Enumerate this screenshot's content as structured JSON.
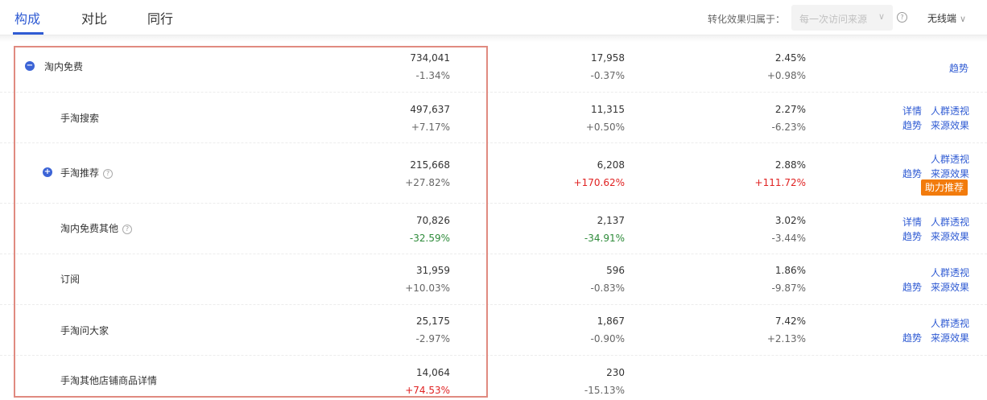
{
  "tabs": [
    {
      "label": "构成",
      "active": true
    },
    {
      "label": "对比",
      "active": false
    },
    {
      "label": "同行",
      "active": false
    }
  ],
  "filters": {
    "attribution_label": "转化效果归属于：",
    "attribution_value": "每一次访问来源",
    "help_icon": "question-circle-icon",
    "device_label": "无线端"
  },
  "colors": {
    "accent": "#2f5bd3",
    "positive": "#e02222",
    "negative": "#2e8b3a",
    "badge": "#f27b0c",
    "highlight": "#e08a80"
  },
  "rows": [
    {
      "name": "淘内免费",
      "toggle": "−",
      "visitors": "734,041",
      "visitors_change": "-1.34%",
      "buyers": "17,958",
      "buyers_change": "-0.37%",
      "rate": "2.45%",
      "rate_change": "+0.98%",
      "links": [
        "趋势"
      ]
    },
    {
      "name": "手淘搜索",
      "visitors": "497,637",
      "visitors_change": "+7.17%",
      "buyers": "11,315",
      "buyers_change": "+0.50%",
      "rate": "2.27%",
      "rate_change": "-6.23%",
      "links": [
        "详情",
        "人群透视",
        "趋势",
        "来源效果"
      ]
    },
    {
      "name": "手淘推荐",
      "toggle": "+",
      "visitors": "215,668",
      "visitors_change": "+27.82%",
      "buyers": "6,208",
      "buyers_change": "+170.62%",
      "rate": "2.88%",
      "rate_change": "+111.72%",
      "links": [
        "人群透视",
        "趋势",
        "来源效果"
      ],
      "badge": "助力推荐"
    },
    {
      "name": "淘内免费其他",
      "visitors": "70,826",
      "visitors_change": "-32.59%",
      "buyers": "2,137",
      "buyers_change": "-34.91%",
      "rate": "3.02%",
      "rate_change": "-3.44%",
      "links": [
        "详情",
        "人群透视",
        "趋势",
        "来源效果"
      ]
    },
    {
      "name": "订阅",
      "visitors": "31,959",
      "visitors_change": "+10.03%",
      "buyers": "596",
      "buyers_change": "-0.83%",
      "rate": "1.86%",
      "rate_change": "-9.87%",
      "links": [
        "人群透视",
        "趋势",
        "来源效果"
      ]
    },
    {
      "name": "手淘问大家",
      "visitors": "25,175",
      "visitors_change": "-2.97%",
      "buyers": "1,867",
      "buyers_change": "-0.90%",
      "rate": "7.42%",
      "rate_change": "+2.13%",
      "links": [
        "人群透视",
        "趋势",
        "来源效果"
      ]
    },
    {
      "name": "手淘其他店铺商品详情",
      "visitors": "14,064",
      "visitors_change": "+74.53%",
      "buyers": "230",
      "buyers_change": "-15.13%"
    }
  ]
}
